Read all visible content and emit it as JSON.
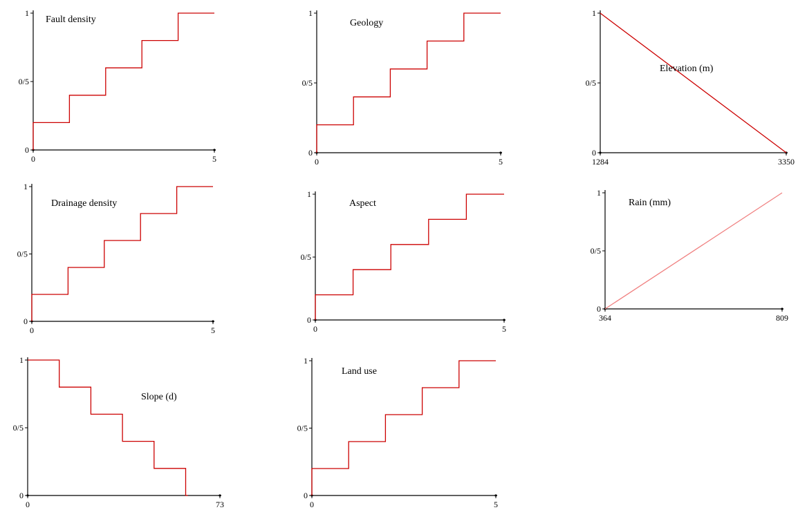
{
  "chart_data": [
    {
      "type": "line",
      "title": "Fault density",
      "x": [
        0,
        0,
        1,
        1,
        2,
        2,
        3,
        3,
        4,
        4,
        5
      ],
      "y": [
        0,
        0.2,
        0.2,
        0.4,
        0.4,
        0.6,
        0.6,
        0.8,
        0.8,
        1.0,
        1.0
      ],
      "xlim": [
        0,
        5
      ],
      "ylim": [
        0,
        1
      ],
      "x_ticks": [
        "0",
        "5"
      ],
      "y_ticks": [
        "0",
        "0/5",
        "1"
      ],
      "color": "#cc0000"
    },
    {
      "type": "line",
      "title": "Geology",
      "x": [
        0,
        0,
        1,
        1,
        2,
        2,
        3,
        3,
        4,
        4,
        5
      ],
      "y": [
        0,
        0.2,
        0.2,
        0.4,
        0.4,
        0.6,
        0.6,
        0.8,
        0.8,
        1.0,
        1.0
      ],
      "xlim": [
        0,
        5
      ],
      "ylim": [
        0,
        1
      ],
      "x_ticks": [
        "0",
        "5"
      ],
      "y_ticks": [
        "0",
        "0/5",
        "1"
      ],
      "color": "#cc0000"
    },
    {
      "type": "line",
      "title": "Elevation (m)",
      "x": [
        1284,
        3350
      ],
      "y": [
        1,
        0
      ],
      "xlim": [
        1284,
        3350
      ],
      "ylim": [
        0,
        1
      ],
      "x_ticks": [
        "1284",
        "3350"
      ],
      "y_ticks": [
        "0",
        "0/5",
        "1"
      ],
      "color": "#cc0000"
    },
    {
      "type": "line",
      "title": "Drainage density",
      "x": [
        0,
        0,
        1,
        1,
        2,
        2,
        3,
        3,
        4,
        4,
        5
      ],
      "y": [
        0,
        0.2,
        0.2,
        0.4,
        0.4,
        0.6,
        0.6,
        0.8,
        0.8,
        1.0,
        1.0
      ],
      "xlim": [
        0,
        5
      ],
      "ylim": [
        0,
        1
      ],
      "x_ticks": [
        "0",
        "5"
      ],
      "y_ticks": [
        "0",
        "0/5",
        "1"
      ],
      "color": "#cc0000"
    },
    {
      "type": "line",
      "title": "Aspect",
      "x": [
        0,
        0,
        1,
        1,
        2,
        2,
        3,
        3,
        4,
        4,
        5
      ],
      "y": [
        0,
        0.2,
        0.2,
        0.4,
        0.4,
        0.6,
        0.6,
        0.8,
        0.8,
        1.0,
        1.0
      ],
      "xlim": [
        0,
        5
      ],
      "ylim": [
        0,
        1
      ],
      "x_ticks": [
        "0",
        "5"
      ],
      "y_ticks": [
        "0",
        "0/5",
        "1"
      ],
      "color": "#cc0000"
    },
    {
      "type": "line",
      "title": "Rain (mm)",
      "x": [
        364,
        809
      ],
      "y": [
        0,
        1
      ],
      "xlim": [
        364,
        809
      ],
      "ylim": [
        0,
        1
      ],
      "x_ticks": [
        "364",
        "809"
      ],
      "y_ticks": [
        "0",
        "0/5",
        "1"
      ],
      "color": "#f08080"
    },
    {
      "type": "line",
      "title": "Slope (d)",
      "x": [
        0,
        12,
        12,
        24,
        24,
        36,
        36,
        48,
        48,
        60,
        60,
        60.8
      ],
      "y": [
        1.0,
        1.0,
        0.8,
        0.8,
        0.6,
        0.6,
        0.4,
        0.4,
        0.2,
        0.2,
        0,
        0
      ],
      "xlim": [
        0,
        73
      ],
      "ylim": [
        0,
        1
      ],
      "x_ticks": [
        "0",
        "73"
      ],
      "y_ticks": [
        "0",
        "0/5",
        "1"
      ],
      "color": "#cc0000"
    },
    {
      "type": "line",
      "title": "Land use",
      "x": [
        0,
        0,
        1,
        1,
        2,
        2,
        3,
        3,
        4,
        4,
        5
      ],
      "y": [
        0,
        0.2,
        0.2,
        0.4,
        0.4,
        0.6,
        0.6,
        0.8,
        0.8,
        1.0,
        1.0
      ],
      "xlim": [
        0,
        5
      ],
      "ylim": [
        0,
        1
      ],
      "x_ticks": [
        "0",
        "5"
      ],
      "y_ticks": [
        "0",
        "0/5",
        "1"
      ],
      "color": "#cc0000"
    }
  ]
}
